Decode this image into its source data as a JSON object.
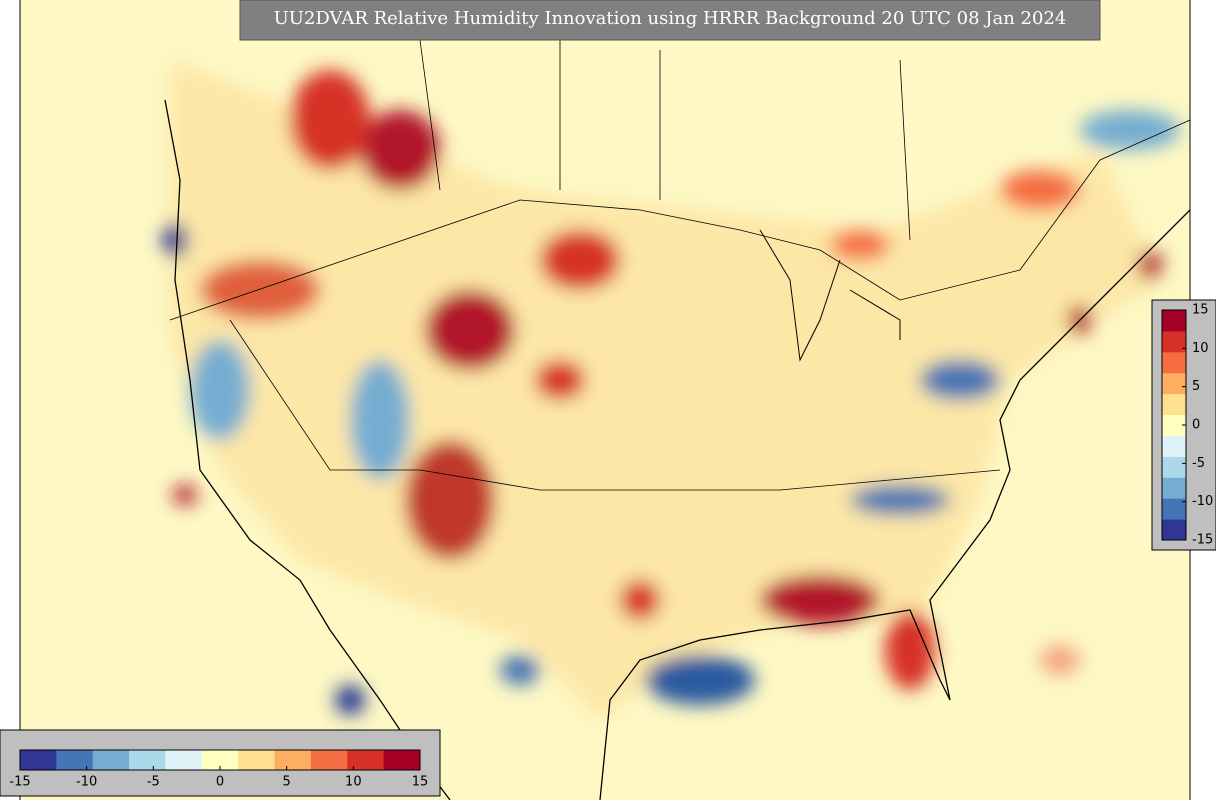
{
  "title": "UU2DVAR Relative Humidity Innovation using HRRR Background 20 UTC 08 Jan 2024",
  "colorbar": {
    "lim": [
      -15,
      15
    ],
    "ticks": [
      -15,
      -10,
      -5,
      0,
      5,
      10,
      15
    ],
    "colors": [
      "#313695",
      "#4575b4",
      "#74add1",
      "#abd9e9",
      "#e0f3f8",
      "#ffffbf",
      "#fee090",
      "#fdae61",
      "#f46d43",
      "#d73027",
      "#a50026"
    ]
  }
}
